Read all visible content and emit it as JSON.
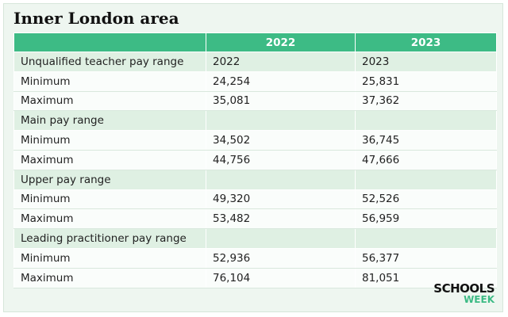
{
  "header": {
    "title": "Inner London area"
  },
  "table": {
    "columns": [
      "2022",
      "2023"
    ],
    "rows": [
      [
        "Unqualified teacher pay range",
        "2022",
        "2023"
      ],
      [
        "Minimum",
        "24,254",
        "25,831"
      ],
      [
        "Maximum",
        "35,081",
        "37,362"
      ],
      [
        "Main pay range"
      ],
      [
        "Minimum",
        "34,502",
        "36,745"
      ],
      [
        "Maximum",
        "44,756",
        "47,666"
      ],
      [
        "Upper pay range"
      ],
      [
        "Minimum",
        "49,320",
        "52,526"
      ],
      [
        "Maximum",
        "53,482",
        "56,959"
      ],
      [
        "Leading practitioner pay range"
      ],
      [
        "Minimum",
        "52,936",
        "56,377"
      ],
      [
        "Maximum",
        "76,104",
        "81,051"
      ]
    ]
  },
  "logo": {
    "line1": "SCHOOLS",
    "line2": "WEEK"
  }
}
